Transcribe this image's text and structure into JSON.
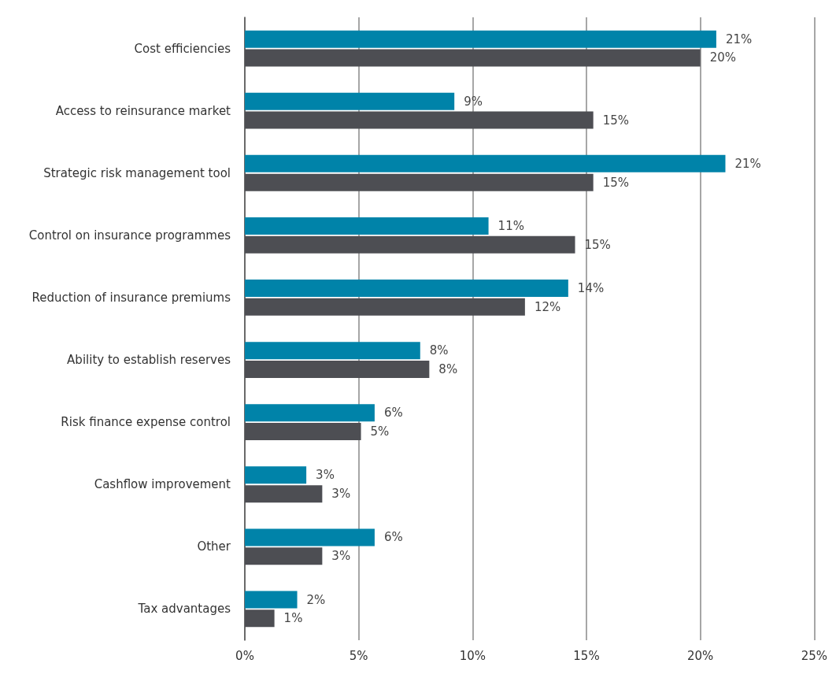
{
  "chart_data": {
    "type": "bar",
    "orientation": "horizontal",
    "categories": [
      "Cost efficiencies",
      "Access to reinsurance market",
      "Strategic risk management tool",
      "Control on insurance programmes",
      "Reduction of insurance premiums",
      "Ability to establish reserves",
      "Risk finance expense control",
      "Cashflow improvement",
      "Other",
      "Tax advantages"
    ],
    "series": [
      {
        "color": "#0083a9",
        "values": [
          20.7,
          9.2,
          21.1,
          10.7,
          14.2,
          7.7,
          5.7,
          2.7,
          5.7,
          2.3
        ],
        "value_labels": [
          "21%",
          "9%",
          "21%",
          "11%",
          "14%",
          "8%",
          "6%",
          "3%",
          "6%",
          "2%"
        ]
      },
      {
        "color": "#4d4e53",
        "values": [
          20.0,
          15.3,
          15.3,
          14.5,
          12.3,
          8.1,
          5.1,
          3.4,
          3.4,
          1.3
        ],
        "value_labels": [
          "20%",
          "15%",
          "15%",
          "15%",
          "12%",
          "8%",
          "5%",
          "3%",
          "3%",
          "1%"
        ]
      }
    ],
    "xlim": [
      0,
      25
    ],
    "xticks": [
      {
        "value": 0,
        "label": "0%"
      },
      {
        "value": 5,
        "label": "5%"
      },
      {
        "value": 10,
        "label": "10%"
      },
      {
        "value": 15,
        "label": "15%"
      },
      {
        "value": 20,
        "label": "20%"
      },
      {
        "value": 25,
        "label": "25%"
      }
    ],
    "grid": "x"
  }
}
